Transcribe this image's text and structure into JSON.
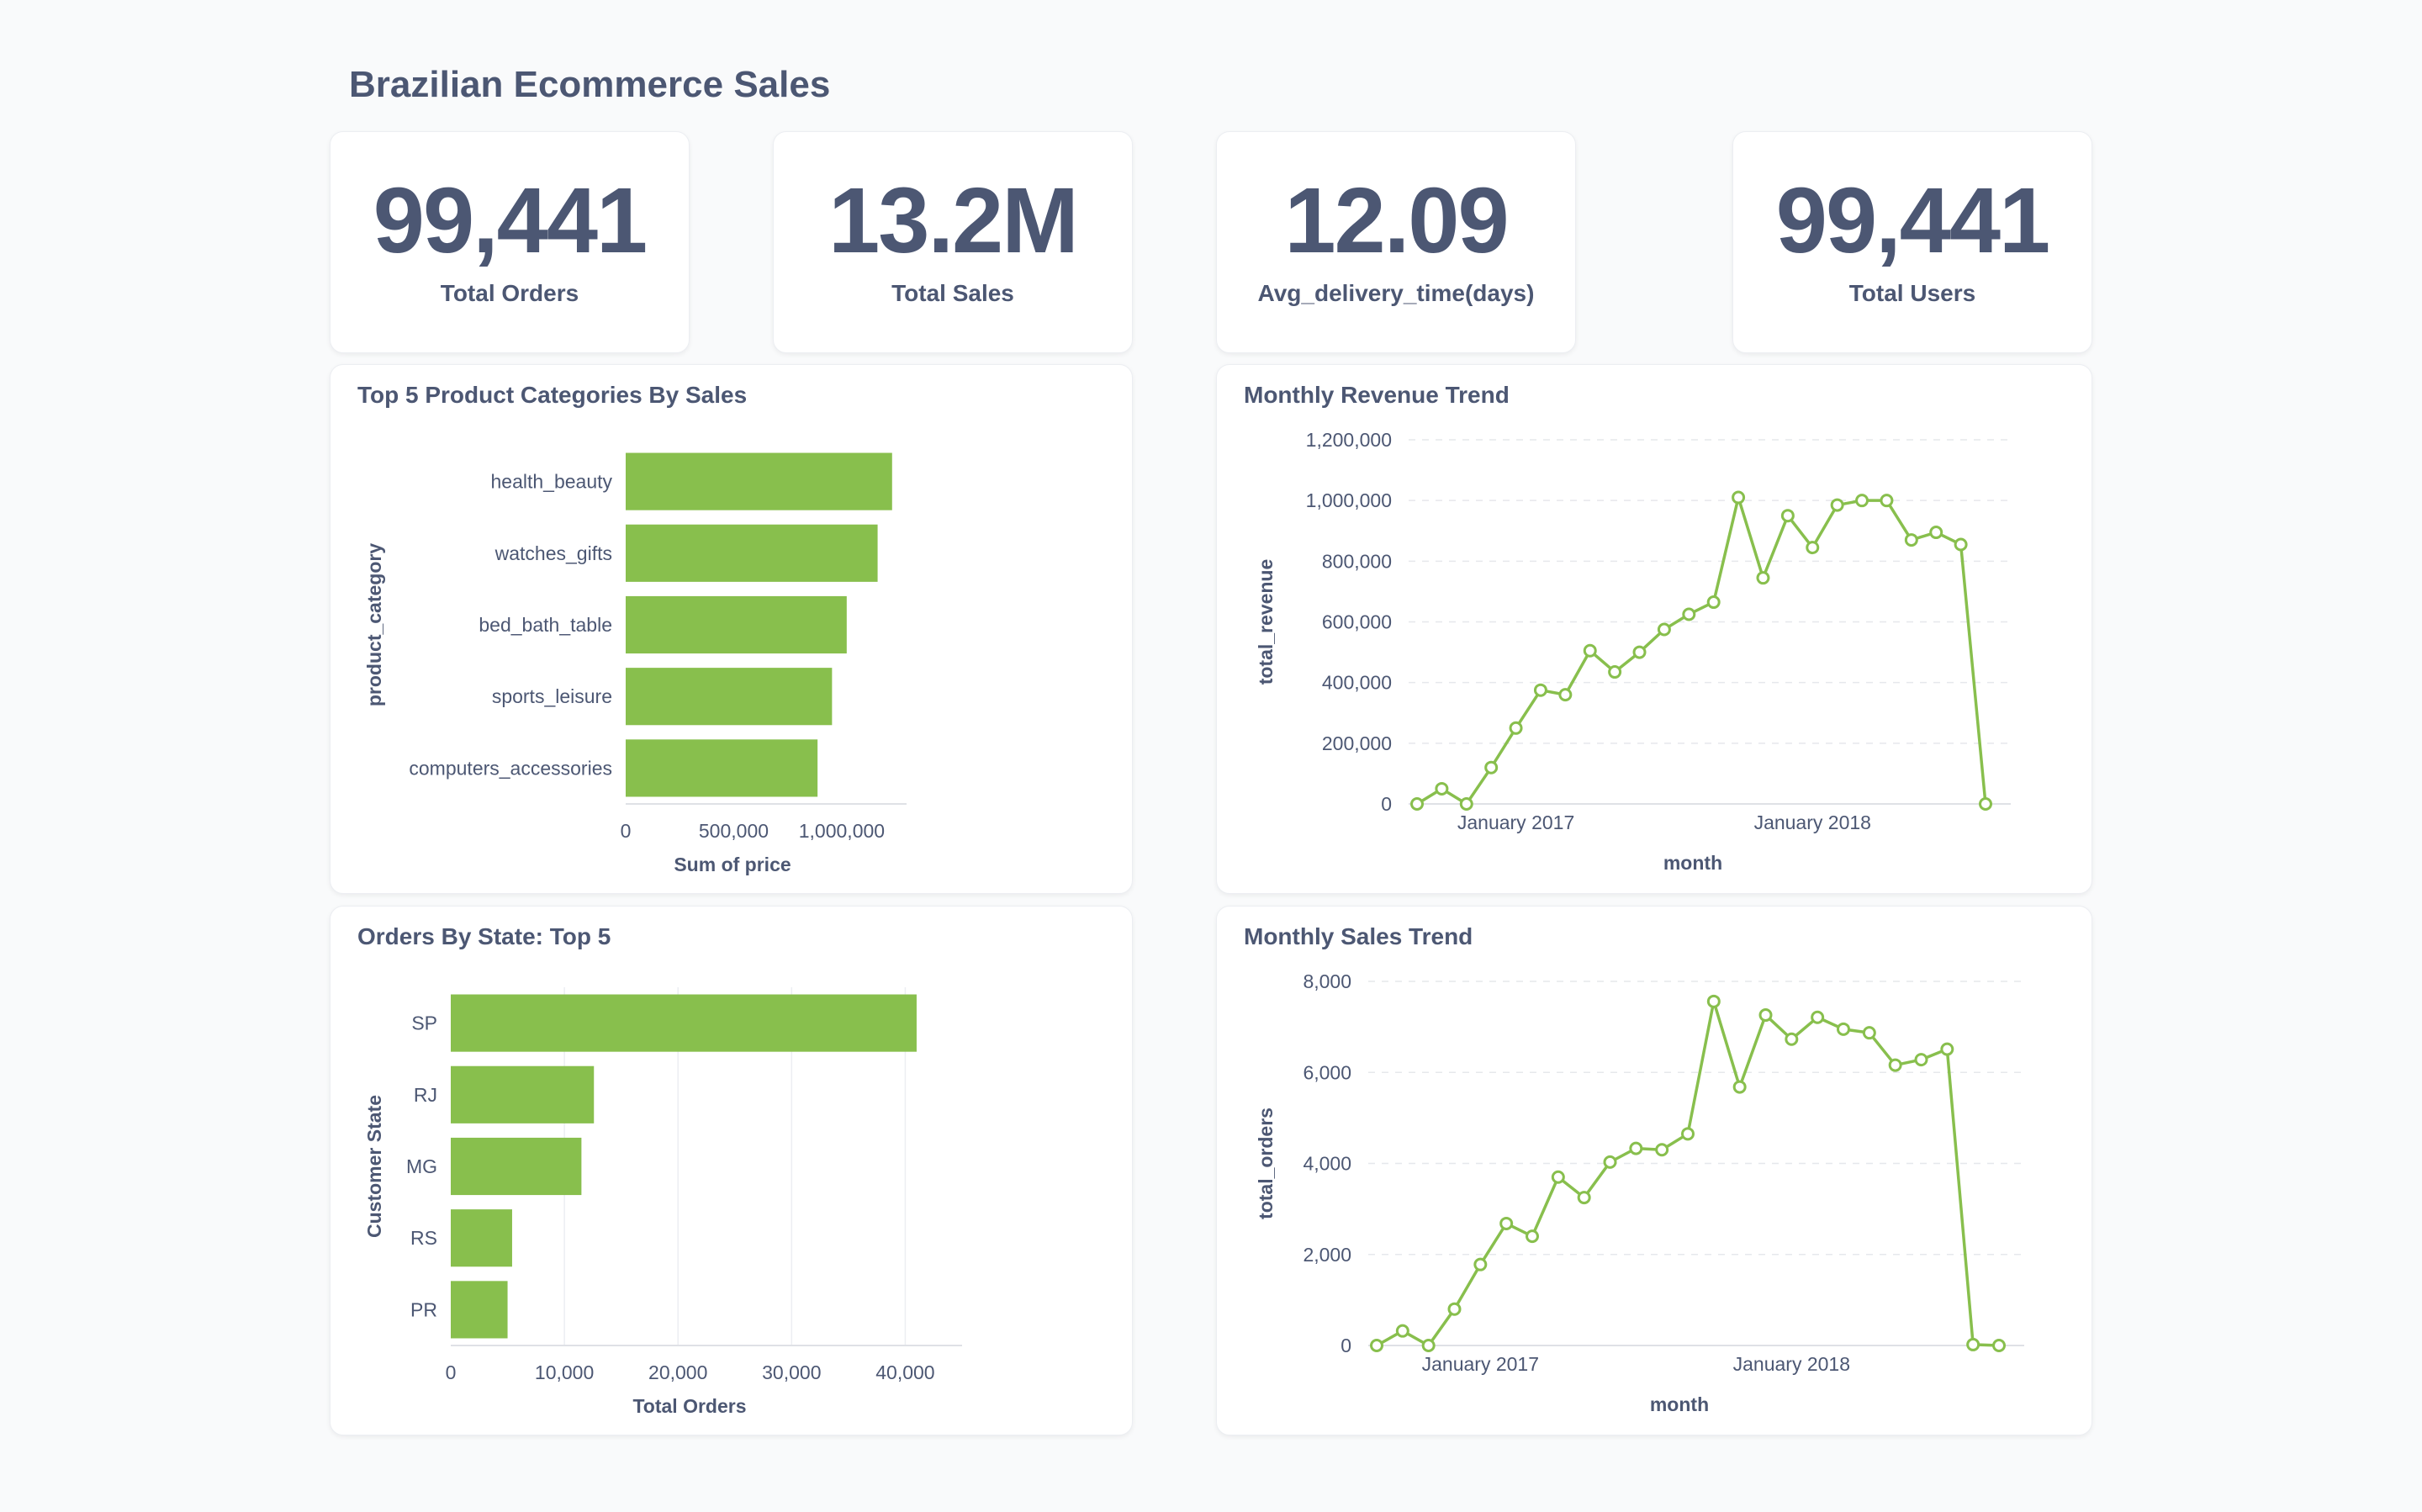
{
  "dashboard": {
    "title": "Brazilian Ecommerce Sales"
  },
  "kpis": [
    {
      "value": "99,441",
      "label": "Total Orders"
    },
    {
      "value": "13.2M",
      "label": "Total Sales"
    },
    {
      "value": "12.09",
      "label": "Avg_delivery_time(days)"
    },
    {
      "value": "99,441",
      "label": "Total Users"
    }
  ],
  "colors": {
    "bar": "#88bf4d",
    "line": "#88bf4d",
    "text": "#4c5773",
    "grid": "#eceef2"
  },
  "chart_data": [
    {
      "id": "categories",
      "type": "bar",
      "orientation": "horizontal",
      "title": "Top 5 Product Categories By Sales",
      "categories": [
        "health_beauty",
        "watches_gifts",
        "bed_bath_table",
        "sports_leisure",
        "computers_accessories"
      ],
      "values": [
        1233000,
        1166000,
        1023000,
        955000,
        888000
      ],
      "xlabel": "Sum of price",
      "ylabel": "product_category",
      "xlim": [
        0,
        1300000
      ],
      "xticks": [
        0,
        500000,
        1000000
      ],
      "xtick_labels": [
        "0",
        "500,000",
        "1,000,000"
      ]
    },
    {
      "id": "revenue",
      "type": "line",
      "title": "Monthly Revenue Trend",
      "xlabel": "month",
      "ylabel": "total_revenue",
      "ylim": [
        0,
        1200000
      ],
      "yticks": [
        0,
        200000,
        400000,
        600000,
        800000,
        1000000,
        1200000
      ],
      "ytick_labels": [
        "0",
        "200,000",
        "400,000",
        "600,000",
        "800,000",
        "1,000,000",
        "1,200,000"
      ],
      "x_labels": [
        "January 2017",
        "January 2018"
      ],
      "x_label_index": [
        4,
        16
      ],
      "values": [
        0,
        50000,
        0,
        120000,
        250000,
        375000,
        360000,
        505000,
        435000,
        500000,
        575000,
        625000,
        665000,
        1010000,
        745000,
        950000,
        845000,
        985000,
        1000000,
        1000000,
        870000,
        895000,
        855000,
        0
      ]
    },
    {
      "id": "states",
      "type": "bar",
      "orientation": "horizontal",
      "title": "Orders By State: Top 5",
      "categories": [
        "SP",
        "RJ",
        "MG",
        "RS",
        "PR"
      ],
      "values": [
        41000,
        12600,
        11500,
        5400,
        5000
      ],
      "xlabel": "Total Orders",
      "ylabel": "Customer State",
      "xlim": [
        0,
        45000
      ],
      "xticks": [
        0,
        10000,
        20000,
        30000,
        40000
      ],
      "xtick_labels": [
        "0",
        "10,000",
        "20,000",
        "30,000",
        "40,000"
      ]
    },
    {
      "id": "sales",
      "type": "line",
      "title": "Monthly Sales Trend",
      "xlabel": "month",
      "ylabel": "total_orders",
      "ylim": [
        0,
        8000
      ],
      "yticks": [
        0,
        2000,
        4000,
        6000,
        8000
      ],
      "ytick_labels": [
        "0",
        "2,000",
        "4,000",
        "6,000",
        "8,000"
      ],
      "x_labels": [
        "January 2017",
        "January 2018"
      ],
      "x_label_index": [
        4,
        16
      ],
      "values": [
        0,
        320,
        0,
        800,
        1780,
        2680,
        2400,
        3700,
        3250,
        4030,
        4330,
        4300,
        4650,
        7560,
        5680,
        7260,
        6730,
        7210,
        6950,
        6870,
        6160,
        6280,
        6510,
        20,
        0
      ]
    }
  ]
}
